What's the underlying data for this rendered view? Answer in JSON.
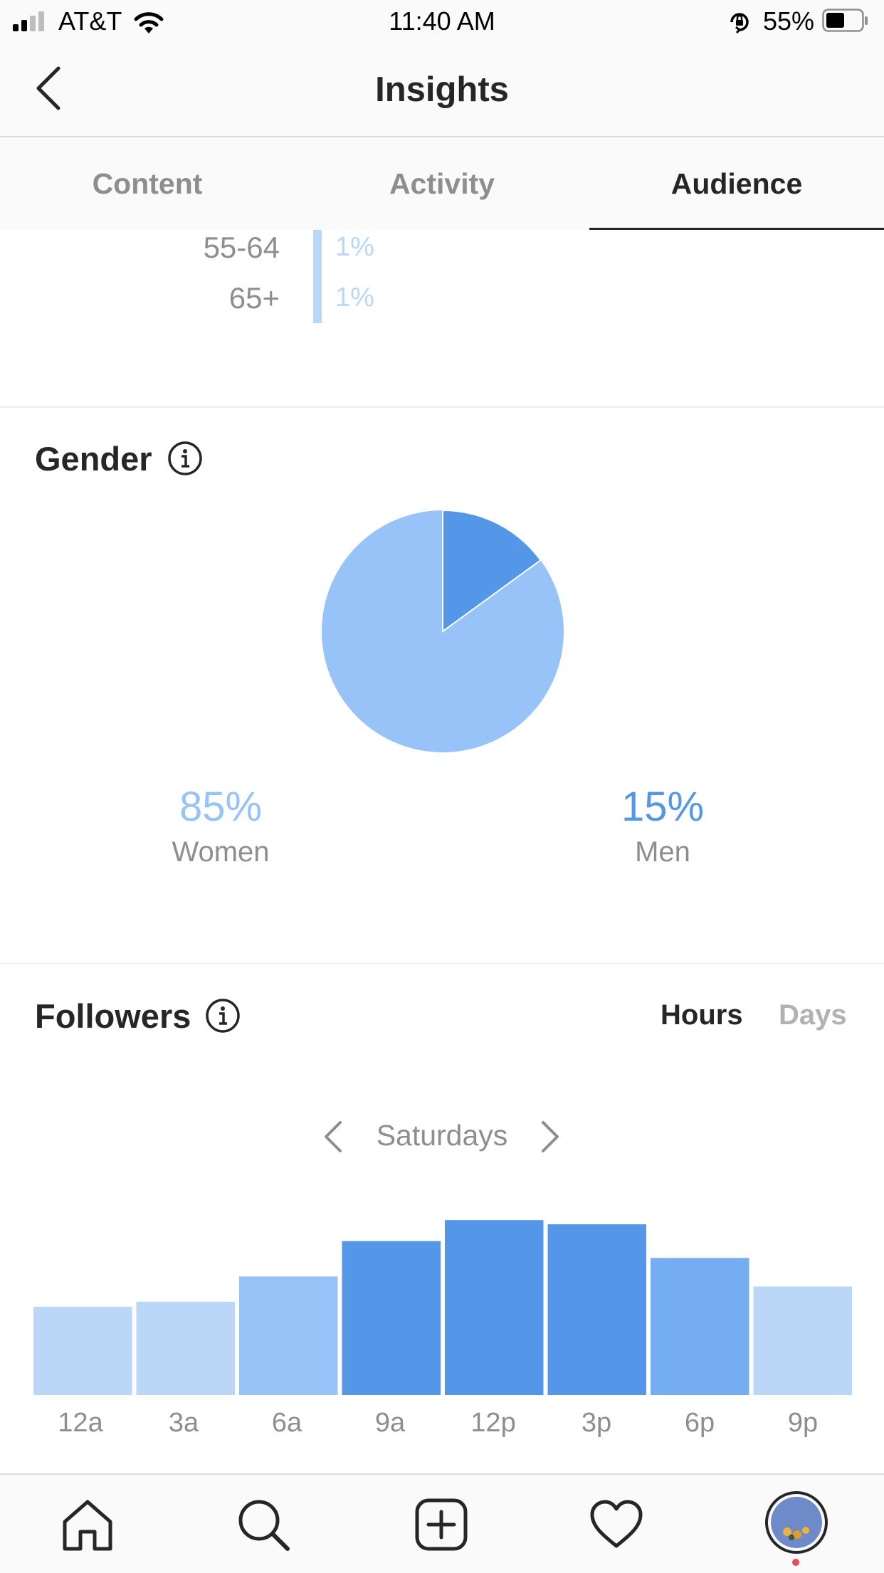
{
  "status_bar": {
    "carrier": "AT&T",
    "time": "11:40 AM",
    "battery": "55%"
  },
  "header": {
    "title": "Insights"
  },
  "tabs": [
    {
      "label": "Content",
      "active": false
    },
    {
      "label": "Activity",
      "active": false
    },
    {
      "label": "Audience",
      "active": true
    }
  ],
  "age_rows": [
    {
      "label": "55-64",
      "value": "1%"
    },
    {
      "label": "65+",
      "value": "1%"
    }
  ],
  "gender": {
    "title": "Gender",
    "women": {
      "value": "85%",
      "label": "Women",
      "color": "#97c3f9"
    },
    "men": {
      "value": "15%",
      "label": "Men",
      "color": "#5496e8"
    }
  },
  "followers": {
    "title": "Followers",
    "toggle": {
      "hours": "Hours",
      "days": "Days",
      "active": "hours"
    },
    "day": "Saturdays"
  },
  "chart_data": {
    "type": "bar",
    "categories": [
      "12a",
      "3a",
      "6a",
      "9a",
      "12p",
      "3p",
      "6p",
      "9p"
    ],
    "values": [
      105,
      111,
      141,
      183,
      208,
      203,
      163,
      129
    ],
    "colors": [
      "#bad7f8",
      "#bad7f8",
      "#97c3f9",
      "#5496e8",
      "#5496e8",
      "#5496e8",
      "#75adf2",
      "#bad7f8"
    ]
  },
  "gender_chart": {
    "type": "pie",
    "categories": [
      "Men",
      "Women"
    ],
    "values": [
      15,
      85
    ]
  },
  "bottom_nav": [
    "home-icon",
    "search-icon",
    "new-post-icon",
    "activity-heart-icon",
    "profile-avatar"
  ]
}
